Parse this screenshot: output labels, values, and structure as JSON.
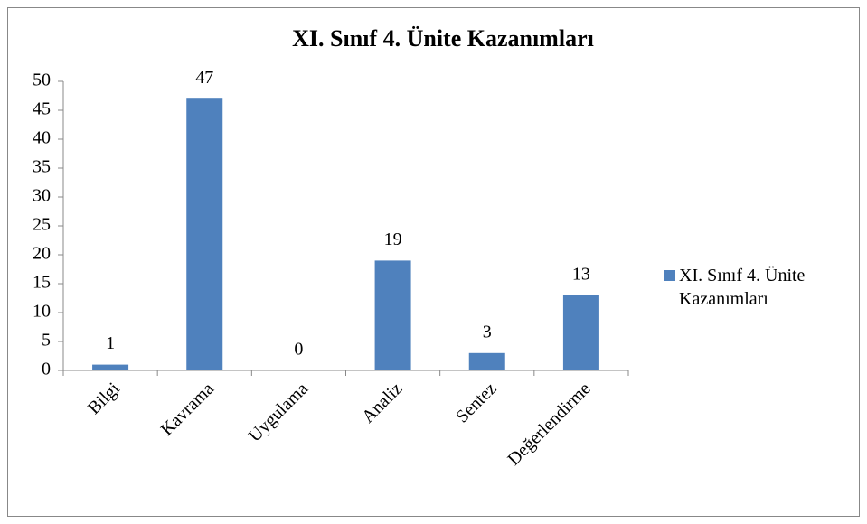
{
  "chart_data": {
    "type": "bar",
    "title": "XI. Sınıf 4. Ünite Kazanımları",
    "categories": [
      "Bilgi",
      "Kavrama",
      "Uygulama",
      "Analiz",
      "Sentez",
      "Değerlendirme"
    ],
    "series": [
      {
        "name": "XI. Sınıf 4. Ünite Kazanımları",
        "color": "#4f81bd",
        "values": [
          1,
          47,
          0,
          19,
          3,
          13
        ]
      }
    ],
    "ylim": [
      0,
      50
    ],
    "yticks": [
      0,
      5,
      10,
      15,
      20,
      25,
      30,
      35,
      40,
      45,
      50
    ],
    "grid": false,
    "legend": "right"
  }
}
